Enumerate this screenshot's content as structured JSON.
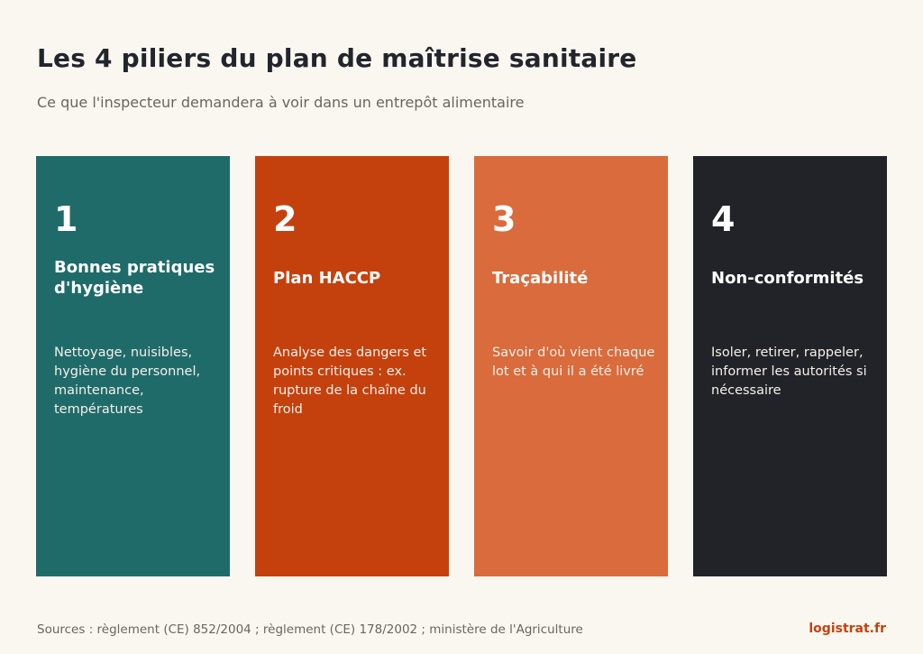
{
  "title": "Les 4 piliers du plan de maîtrise sanitaire",
  "subtitle": "Ce que l'inspecteur demandera à voir dans un entrepôt alimentaire",
  "colors": {
    "background": "#faf7f1",
    "pillar_1": "#1f6b6a",
    "pillar_2": "#c4410e",
    "pillar_3": "#d96b3c",
    "pillar_4": "#212328",
    "brand": "#c4410e"
  },
  "pillars": [
    {
      "number": "1",
      "title": "Bonnes pratiques d'hygiène",
      "description": "Nettoyage, nuisibles, hygiène du personnel, maintenance, températures"
    },
    {
      "number": "2",
      "title": "Plan HACCP",
      "description": "Analyse des dangers et points critiques : ex. rupture de la chaîne du froid"
    },
    {
      "number": "3",
      "title": "Traçabilité",
      "description": "Savoir d'où vient chaque lot et à qui il a été livré"
    },
    {
      "number": "4",
      "title": "Non-conformités",
      "description": "Isoler, retirer, rappeler, informer les autorités si nécessaire"
    }
  ],
  "footer": {
    "sources": "Sources : règlement (CE) 852/2004 ; règlement (CE) 178/2002 ; ministère de l'Agriculture",
    "brand": "logistrat.fr"
  }
}
